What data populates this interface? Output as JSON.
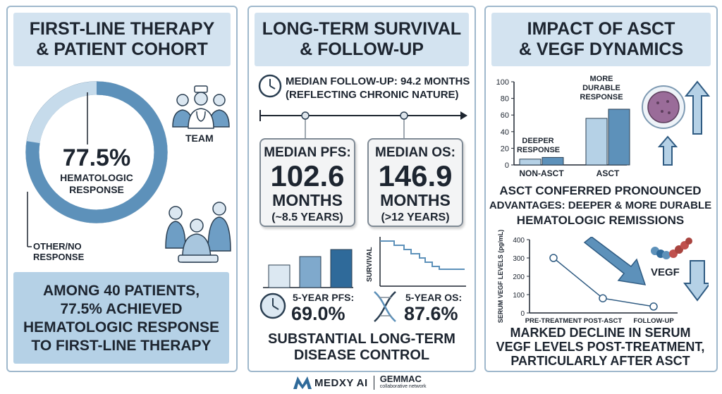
{
  "panel1": {
    "title_line1": "FIRST-LINE THERAPY",
    "title_line2": "& PATIENT COHORT",
    "donut_value": "77.5%",
    "donut_label_line1": "HEMATOLOGIC",
    "donut_label_line2": "RESPONSE",
    "donut_fraction": 0.775,
    "other_label_line1": "OTHER/NO",
    "other_label_line2": "RESPONSE",
    "team_label": "TEAM",
    "summary_line1": "AMONG 40 PATIENTS,",
    "summary_line2": "77.5% ACHIEVED",
    "summary_line3": "HEMATOLOGIC RESPONSE",
    "summary_line4": "TO FIRST-LINE THERAPY"
  },
  "panel2": {
    "title_line1": "LONG-TERM SURVIVAL",
    "title_line2": "& FOLLOW-UP",
    "followup_line1": "MEDIAN FOLLOW-UP: 94.2 MONTHS",
    "followup_line2": "(REFLECTING CHRONIC NATURE)",
    "pfs_card": {
      "label": "MEDIAN PFS:",
      "value": "102.6",
      "unit": "MONTHS",
      "note": "(~8.5 YEARS)"
    },
    "os_card": {
      "label": "MEDIAN OS:",
      "value": "146.9",
      "unit": "MONTHS",
      "note": "(>12 YEARS)"
    },
    "survival_axis_label": "SURVIVAL",
    "pfs5_label": "5-YEAR PFS:",
    "pfs5_value": "69.0%",
    "os5_label": "5-YEAR OS:",
    "os5_value": "87.6%",
    "footer_line1": "SUBSTANTIAL LONG-TERM",
    "footer_line2": "DISEASE CONTROL"
  },
  "panel3": {
    "title_line1": "IMPACT OF ASCT",
    "title_line2": "& VEGF DYNAMICS",
    "deeper_label_line1": "DEEPER",
    "deeper_label_line2": "RESPONSE",
    "durable_label_line1": "MORE",
    "durable_label_line2": "DURABLE",
    "durable_label_line3": "RESPONSE",
    "asct_text_line1": "ASCT CONFERRED PRONOUNCED",
    "asct_text_line2": "ADVANTAGES: DEEPER & MORE DURABLE",
    "asct_text_line3": "HEMATOLOGIC REMISSIONS",
    "vegf_label": "VEGF",
    "vegf_text_line1": "MARKED DECLINE IN SERUM",
    "vegf_text_line2": "VEGF LEVELS POST-TREATMENT,",
    "vegf_text_line3": "PARTICULARLY AFTER ASCT"
  },
  "footer": {
    "brand1": "MEDXY AI",
    "brand2": "GEMMAC",
    "brand2_sub": "collaborative network"
  },
  "colors": {
    "accent_dark": "#2f6a9a",
    "accent_mid": "#5d91ba",
    "accent_light": "#b5d1e6",
    "title_bg": "#d3e3f0"
  },
  "chart_data": [
    {
      "type": "bar",
      "categories": [
        "NON-ASCT",
        "ASCT"
      ],
      "series": [
        {
          "values": [
            7,
            56
          ]
        },
        {
          "values": [
            9,
            67
          ]
        }
      ],
      "ylim": [
        0,
        100
      ],
      "yticks": [
        0,
        20,
        40,
        60,
        80,
        100
      ],
      "annotations": [
        "DEEPER RESPONSE",
        "MORE DURABLE RESPONSE"
      ]
    },
    {
      "type": "line",
      "categories": [
        "PRE-TREATMENT",
        "POST-ASCT",
        "FOLLOW-UP"
      ],
      "values": [
        300,
        80,
        35
      ],
      "ylabel": "SERUM VEGF LEVELS (pg/mL)",
      "ylim": [
        0,
        400
      ],
      "yticks": [
        0,
        100,
        200,
        300,
        400
      ]
    }
  ]
}
